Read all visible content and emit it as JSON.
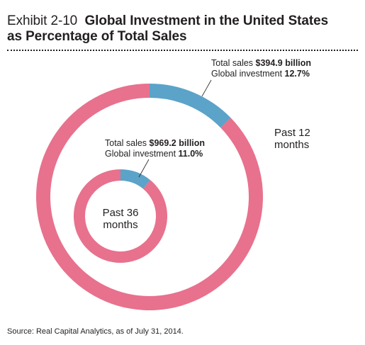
{
  "header": {
    "exhibit": "Exhibit 2-10",
    "title_line1": "Global Investment in the United States",
    "title_line2": "as Percentage of Total Sales"
  },
  "colors": {
    "total_sales": "#e8718d",
    "global_investment": "#5ba3c8"
  },
  "chart_data": {
    "type": "pie",
    "rings": [
      {
        "name": "Past 12 months",
        "label_lines": [
          "Past 12",
          "months"
        ],
        "total_sales_label": "Total sales ",
        "total_sales_value": "$394.9 billion",
        "investment_label": "Global investment ",
        "investment_value": "12.7%",
        "share_pct": 12.7
      },
      {
        "name": "Past 36 months",
        "label_lines": [
          "Past 36",
          "months"
        ],
        "total_sales_label": "Total sales ",
        "total_sales_value": "$969.2 billion",
        "investment_label": "Global investment ",
        "investment_value": "11.0%",
        "share_pct": 11.0
      }
    ]
  },
  "source": "Source: Real Capital Analytics, as of July 31, 2014."
}
